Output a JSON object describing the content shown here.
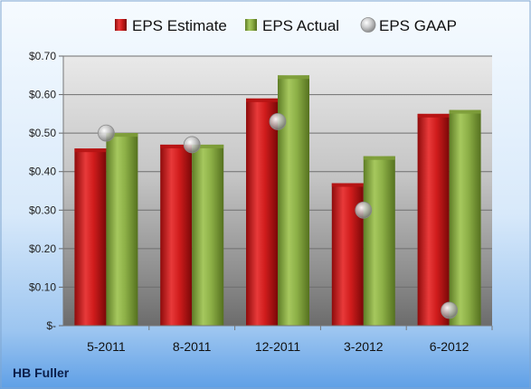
{
  "chart_data": {
    "type": "bar",
    "categories": [
      "5-2011",
      "8-2011",
      "12-2011",
      "3-2012",
      "6-2012"
    ],
    "series": [
      {
        "name": "EPS Estimate",
        "kind": "bar",
        "color": "#d21c1c",
        "values": [
          0.46,
          0.47,
          0.59,
          0.37,
          0.55
        ]
      },
      {
        "name": "EPS Actual",
        "kind": "bar",
        "color": "#8fb14a",
        "values": [
          0.5,
          0.47,
          0.65,
          0.44,
          0.56
        ]
      },
      {
        "name": "EPS GAAP",
        "kind": "scatter",
        "color": "#a9a9a9",
        "values": [
          0.5,
          0.47,
          0.53,
          0.3,
          0.04
        ]
      }
    ],
    "yticks": [
      {
        "value": 0.0,
        "label": "$-"
      },
      {
        "value": 0.1,
        "label": "$0.10"
      },
      {
        "value": 0.2,
        "label": "$0.20"
      },
      {
        "value": 0.3,
        "label": "$0.30"
      },
      {
        "value": 0.4,
        "label": "$0.40"
      },
      {
        "value": 0.5,
        "label": "$0.50"
      },
      {
        "value": 0.6,
        "label": "$0.60"
      },
      {
        "value": 0.7,
        "label": "$0.70"
      }
    ],
    "ylim": [
      0,
      0.7
    ],
    "grid": true,
    "legend_position": "top",
    "company": "HB Fuller"
  }
}
